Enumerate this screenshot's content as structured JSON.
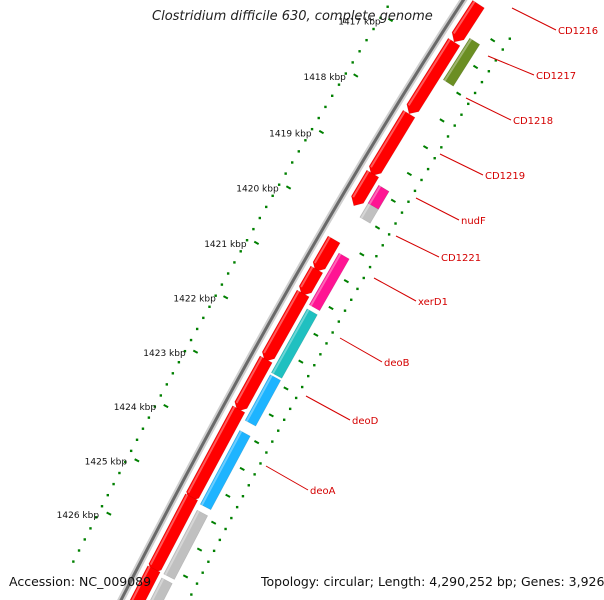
{
  "title": "Clostridium difficile 630, complete genome",
  "footer": {
    "accession_label": "Accession:",
    "accession": "NC_009089",
    "topology_label": "Topology:",
    "topology": "circular",
    "length_label": "Length:",
    "length": "4,290,252 bp",
    "genes_label": "Genes:",
    "genes": "3,926"
  },
  "colors": {
    "gene_red": "#ff0000",
    "gene_gray": "#c0c0c0",
    "gene_olive": "#6b8e23",
    "gene_pink": "#ff1493",
    "gene_teal": "#20c0c0",
    "gene_blue": "#1eb4ff",
    "label_red": "#d40000",
    "tick_green": "#008000"
  },
  "kbp_scale": {
    "unit": "kbp",
    "labels": [
      "1417 kbp",
      "1418 kbp",
      "1419 kbp",
      "1420 kbp",
      "1421 kbp",
      "1422 kbp",
      "1423 kbp",
      "1424 kbp",
      "1425 kbp",
      "1426 kbp"
    ]
  },
  "gene_labels": [
    "CD1216",
    "CD1217",
    "CD1218",
    "CD1219",
    "nudF",
    "CD1221",
    "xerD1",
    "deoB",
    "deoD",
    "deoA"
  ]
}
